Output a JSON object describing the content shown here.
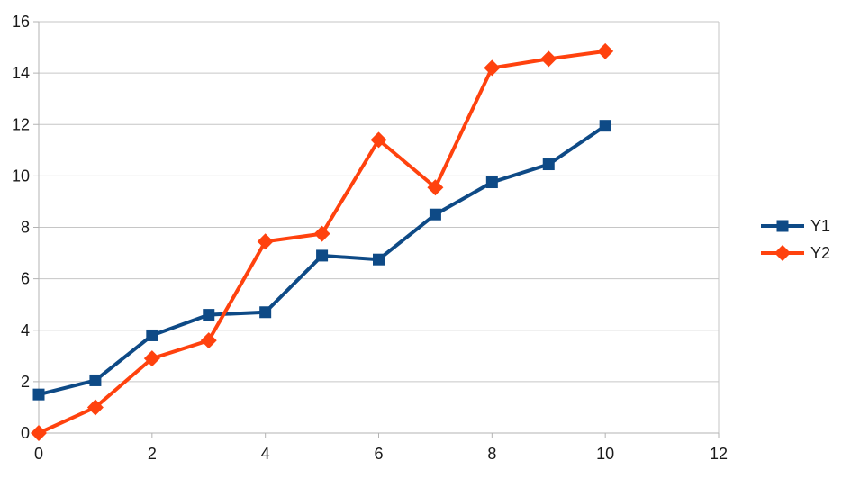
{
  "chart_data": {
    "type": "line",
    "title": "",
    "xlabel": "",
    "ylabel": "",
    "x": [
      0,
      1,
      2,
      3,
      4,
      5,
      6,
      7,
      8,
      9,
      10
    ],
    "series": [
      {
        "name": "Y1",
        "color": "#0e4a86",
        "marker": "square",
        "values": [
          1.5,
          2.05,
          3.8,
          4.6,
          4.7,
          6.9,
          6.75,
          8.5,
          9.75,
          10.45,
          11.95
        ]
      },
      {
        "name": "Y2",
        "color": "#ff420e",
        "marker": "diamond",
        "values": [
          0,
          1.0,
          2.9,
          3.6,
          7.45,
          7.75,
          11.4,
          9.55,
          14.2,
          14.55,
          14.85
        ]
      }
    ],
    "xlim": [
      0,
      12
    ],
    "ylim": [
      0,
      16
    ],
    "xticks": [
      0,
      2,
      4,
      6,
      8,
      10,
      12
    ],
    "yticks": [
      0,
      2,
      4,
      6,
      8,
      10,
      12,
      14,
      16
    ],
    "grid": "horizontal",
    "legend_position": "right",
    "style": {
      "grid_color": "#c6c6c6",
      "axis_color": "#b3b3b3",
      "text_color": "#1a1a1a",
      "background": "#ffffff",
      "line_width": 4,
      "marker_size": 13
    }
  }
}
